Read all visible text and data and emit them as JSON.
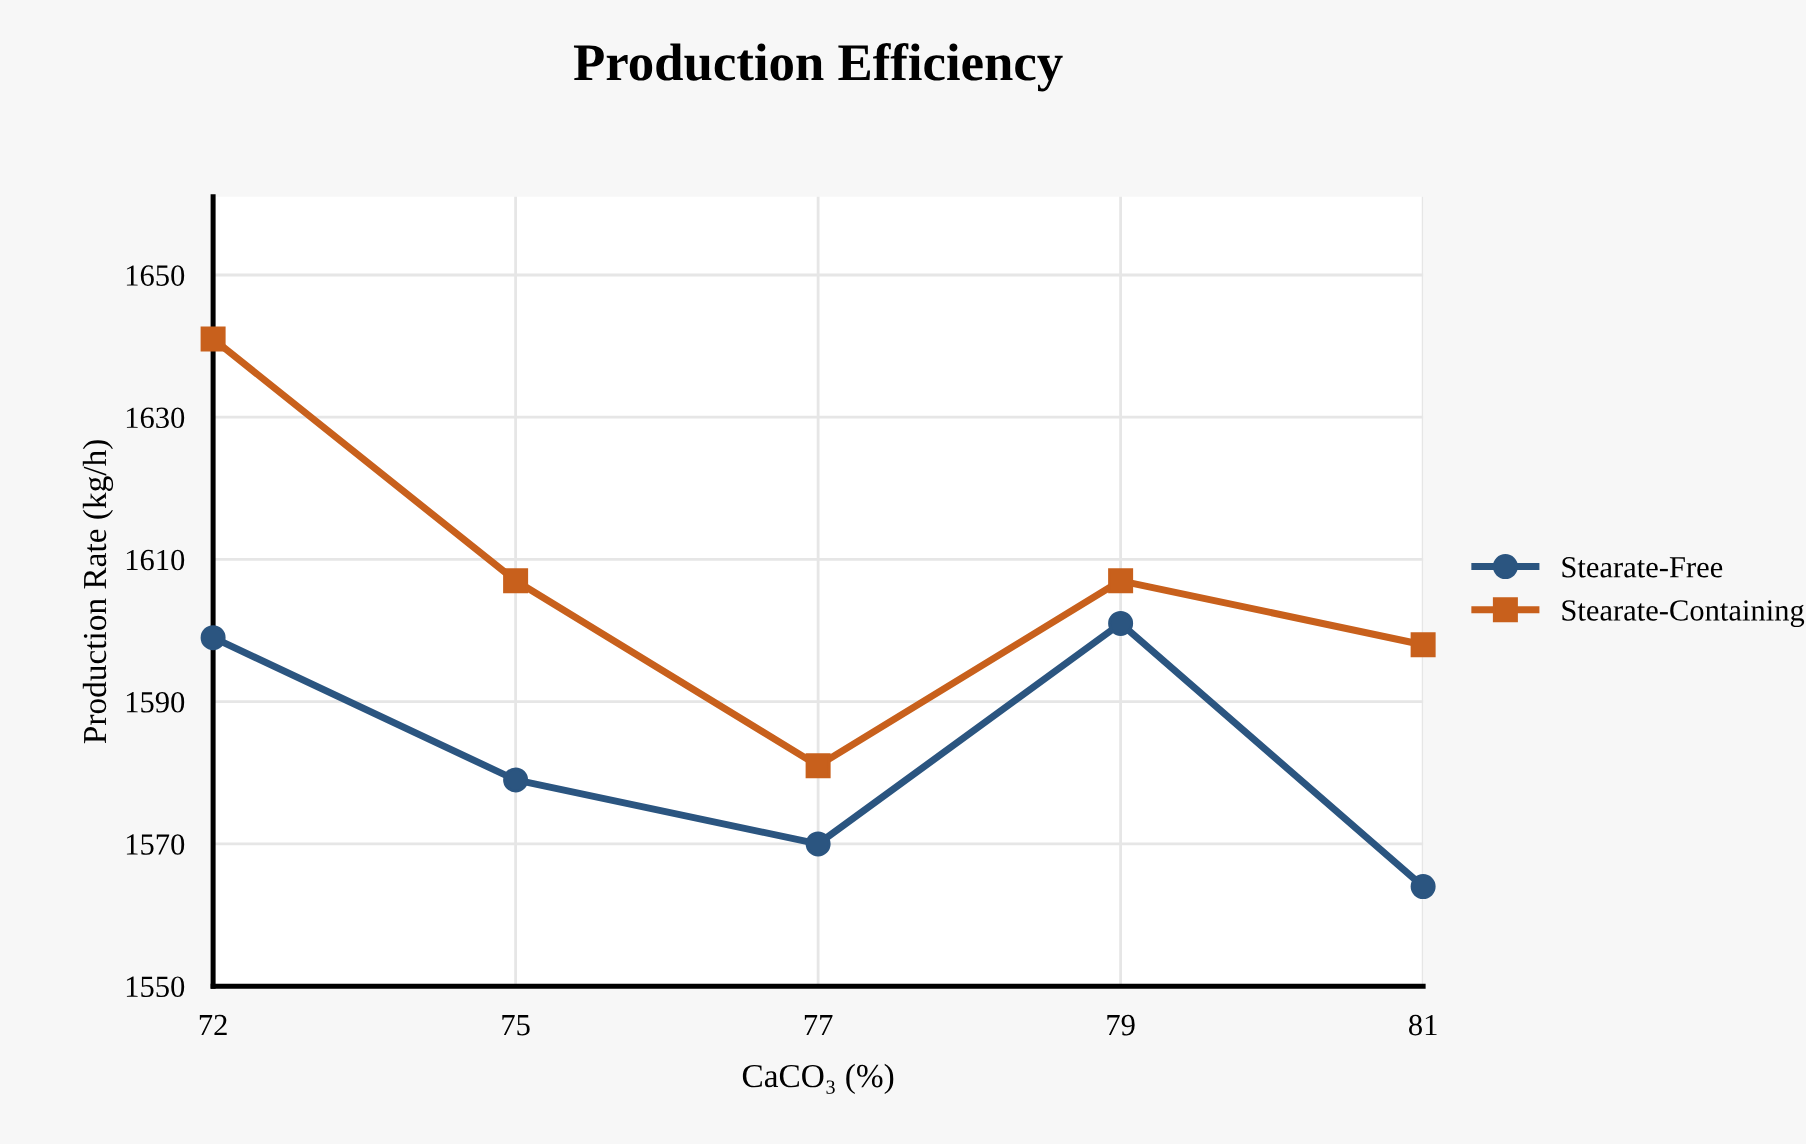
{
  "chart_data": {
    "type": "line",
    "title": "Production Efficiency",
    "xlabel": "CaCO₃ (%)",
    "ylabel": "Production Rate (kg/h)",
    "categories": [
      "72",
      "75",
      "77",
      "79",
      "81"
    ],
    "series": [
      {
        "name": "Stearate-Free",
        "color": "#2b5580",
        "marker": "circle",
        "values": [
          1599,
          1579,
          1570,
          1601,
          1564
        ]
      },
      {
        "name": "Stearate-Containing",
        "color": "#c8601c",
        "marker": "square",
        "values": [
          1641,
          1607,
          1581,
          1607,
          1598
        ]
      }
    ],
    "ylim": [
      1550,
      1661
    ],
    "yticks": [
      1550,
      1570,
      1590,
      1610,
      1630,
      1650
    ],
    "grid": true,
    "legend": "right",
    "line_style": "solid"
  }
}
